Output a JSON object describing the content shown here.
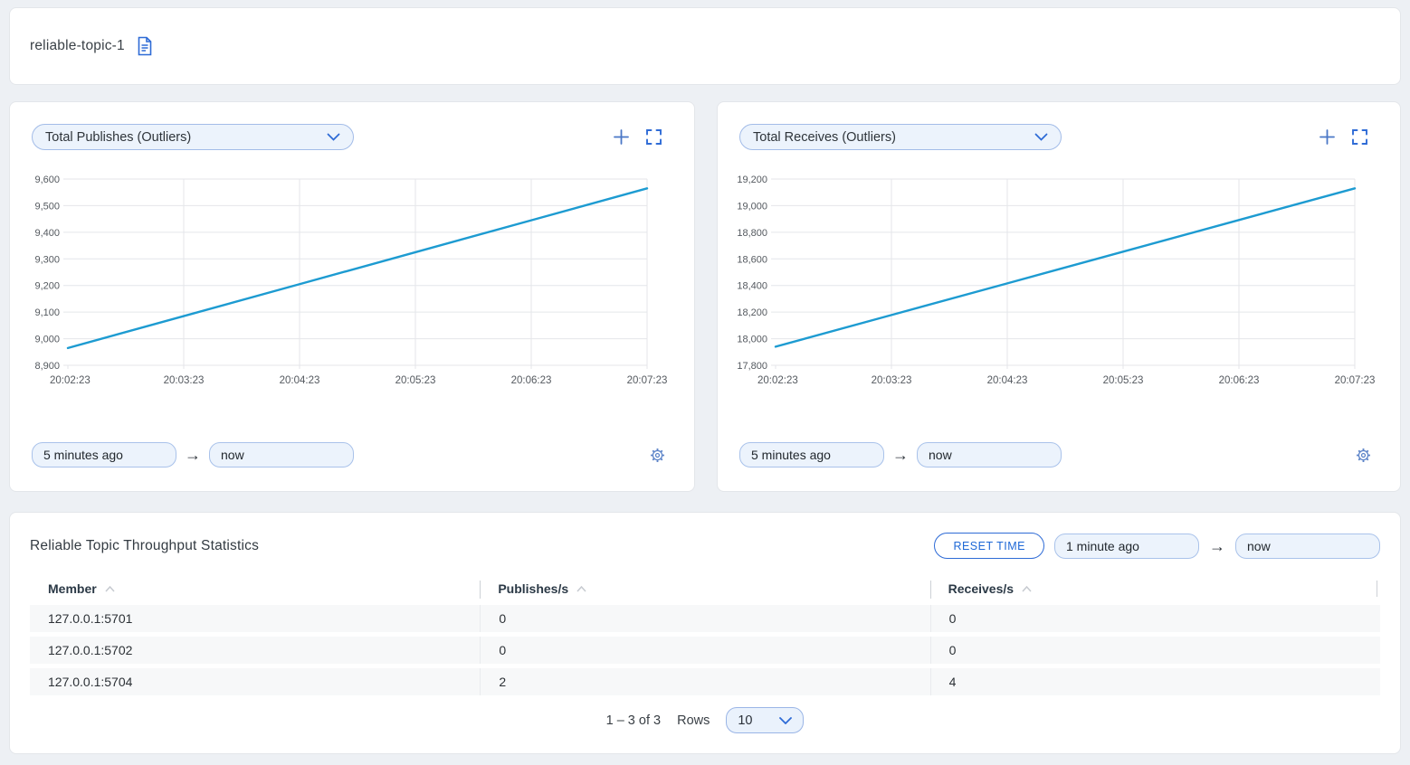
{
  "colors": {
    "accent": "#2e6bd6",
    "muted_blue": "#5b83c8",
    "line": "#1d9bd1",
    "grid": "#e4e6ea",
    "axis_text": "#54595f"
  },
  "icons": {
    "arrow_right": "→"
  },
  "header": {
    "title": "reliable-topic-1"
  },
  "charts": [
    {
      "selector_label": "Total Publishes (Outliers)",
      "from_value": "5 minutes ago",
      "to_value": "now"
    },
    {
      "selector_label": "Total Receives (Outliers)",
      "from_value": "5 minutes ago",
      "to_value": "now"
    }
  ],
  "chart_data": [
    {
      "type": "line",
      "title": "Total Publishes (Outliers)",
      "x": [
        "20:02:23",
        "20:03:23",
        "20:04:23",
        "20:05:23",
        "20:06:23",
        "20:07:23"
      ],
      "series": [
        {
          "name": "Total Publishes",
          "values": [
            8965,
            9085,
            9205,
            9325,
            9445,
            9565
          ]
        }
      ],
      "ylim": [
        8900,
        9600
      ],
      "yticks": [
        8900,
        9000,
        9100,
        9200,
        9300,
        9400,
        9500,
        9600
      ],
      "grid": true,
      "legend": "none",
      "line_color": "#1d9bd1"
    },
    {
      "type": "line",
      "title": "Total Receives (Outliers)",
      "x": [
        "20:02:23",
        "20:03:23",
        "20:04:23",
        "20:05:23",
        "20:06:23",
        "20:07:23"
      ],
      "series": [
        {
          "name": "Total Receives",
          "values": [
            17940,
            18178,
            18416,
            18654,
            18892,
            19130
          ]
        }
      ],
      "ylim": [
        17800,
        19200
      ],
      "yticks": [
        17800,
        18000,
        18200,
        18400,
        18600,
        18800,
        19000,
        19200
      ],
      "grid": true,
      "legend": "none",
      "line_color": "#1d9bd1"
    }
  ],
  "table": {
    "title": "Reliable Topic Throughput Statistics",
    "reset_button": "RESET TIME",
    "from_value": "1 minute ago",
    "to_value": "now",
    "columns": [
      "Member",
      "Publishes/s",
      "Receives/s"
    ],
    "rows": [
      [
        "127.0.0.1:5701",
        "0",
        "0"
      ],
      [
        "127.0.0.1:5702",
        "0",
        "0"
      ],
      [
        "127.0.0.1:5704",
        "2",
        "4"
      ]
    ],
    "pagination": {
      "range": "1 – 3 of 3",
      "rows_label": "Rows",
      "rows_per_page": "10"
    }
  }
}
